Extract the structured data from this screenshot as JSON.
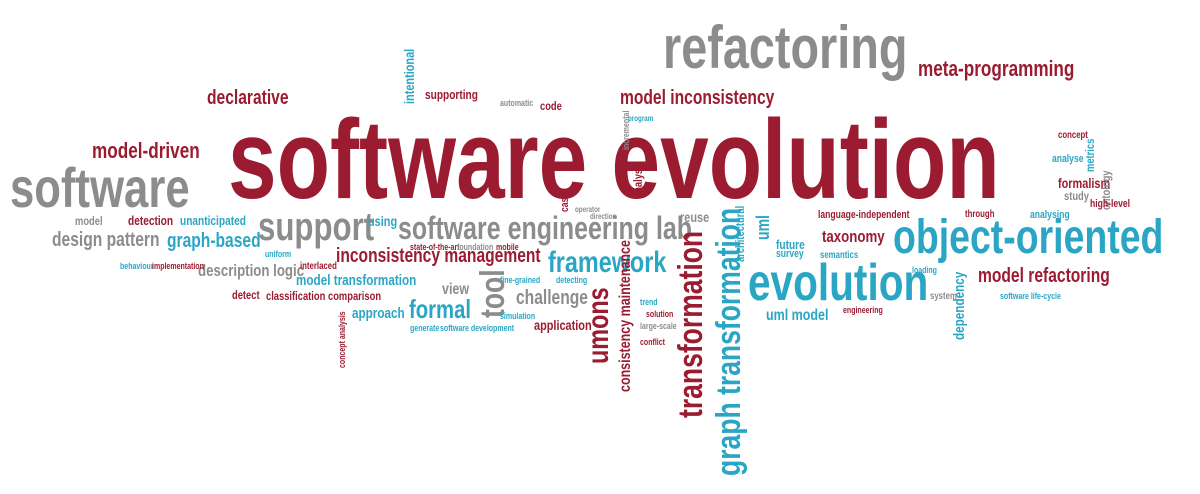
{
  "colors": {
    "red": "#9b1b30",
    "gray": "#8c8c8c",
    "teal": "#2aa6c4"
  },
  "words": {
    "software_evolution": "software evolution",
    "refactoring": "refactoring",
    "meta_programming": "meta-programming",
    "declarative": "declarative",
    "model_driven": "model-driven",
    "software": "software",
    "intentional": "intentional",
    "supporting": "supporting",
    "automatic": "automatic",
    "code": "code",
    "model_inconsistency": "model inconsistency",
    "program": "program",
    "model": "model",
    "detection": "detection",
    "unanticipated": "unanticipated",
    "support": "support",
    "using": "using",
    "software_engineering_lab": "software engineering lab",
    "reuse": "reuse",
    "uml": "uml",
    "language_independent": "language-independent",
    "through": "through",
    "analysing": "analysing",
    "concept": "concept",
    "analyse": "analyse",
    "metrics": "metrics",
    "formalism": "formalism",
    "ontology": "ontology",
    "study": "study",
    "high_level": "high-level",
    "design_pattern": "design pattern",
    "graph_based": "graph-based",
    "inconsistency_management": "inconsistency management",
    "framework": "framework",
    "taxonomy": "taxonomy",
    "object_oriented": "object-oriented",
    "future": "future",
    "survey": "survey",
    "semantics": "semantics",
    "architectural": "architectural",
    "state_of_the_art": "state-of-the-art",
    "foundation": "foundation",
    "mobile": "mobile",
    "fine_grained": "fine-grained",
    "detecting": "detecting",
    "evolution": "evolution",
    "loading": "loading",
    "model_refactoring": "model refactoring",
    "description_logic": "description logic",
    "uniform": "uniform",
    "interlaced": "interlaced",
    "behaviour": "behaviour",
    "implementation": "implementation",
    "model_transformation": "model transformation",
    "detect": "detect",
    "classification": "classification",
    "comparison": "comparison",
    "view": "view",
    "tool": "tool",
    "challenge": "challenge",
    "umons": "umons",
    "transformation": "transformation",
    "graph_transformation": "graph transformation",
    "trend": "trend",
    "solution": "solution",
    "large_scale": "large-scale",
    "formal": "formal",
    "approach": "approach",
    "generate": "generate",
    "software_development": "software development",
    "simulation": "simulation",
    "application": "application",
    "conflict": "conflict",
    "consistency_maintenance": "consistency maintenance",
    "uml_model": "uml model",
    "engineering": "engineering",
    "dependency": "dependency",
    "system": "system",
    "software_life_cycle": "software life-cycle",
    "concept_analysis": "concept analysis",
    "analysis": "analysis",
    "incremental": "incremental",
    "case": "case",
    "operator": "operator",
    "direction": "direction"
  }
}
